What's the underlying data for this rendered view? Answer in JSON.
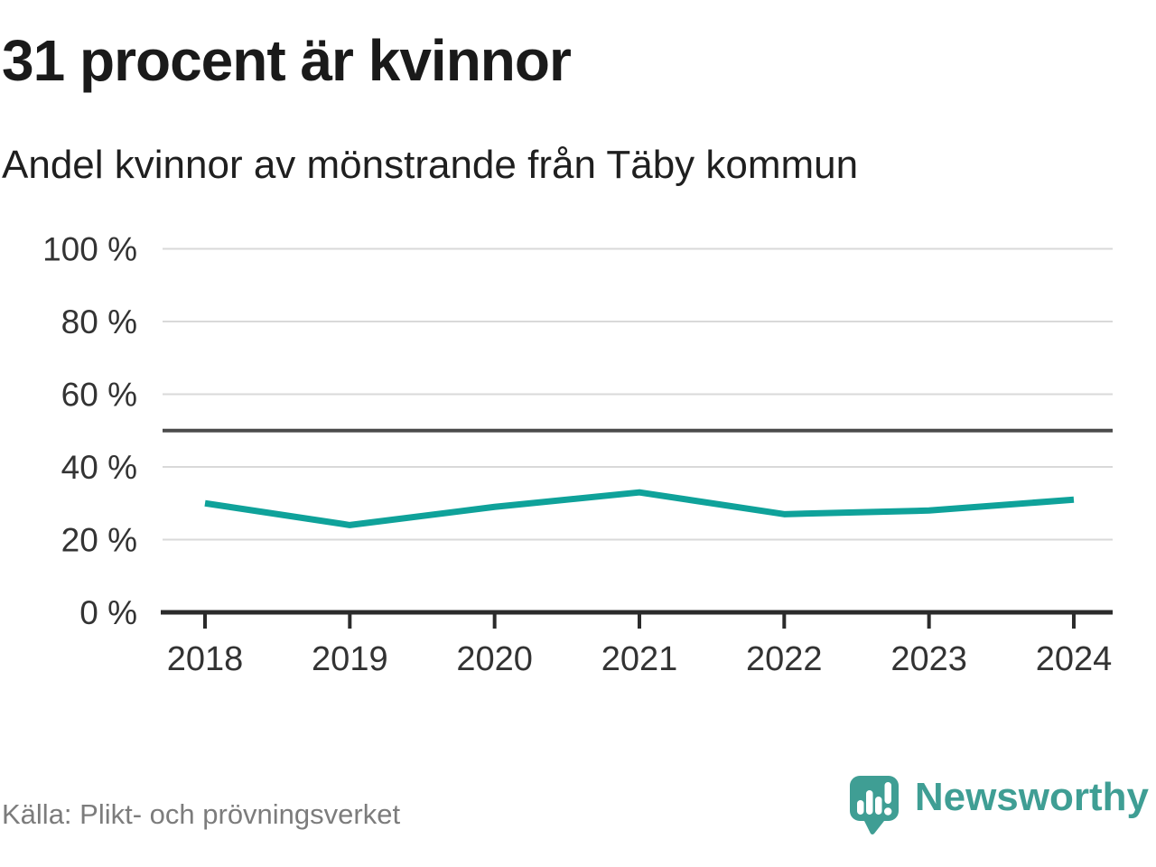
{
  "header": {
    "title": "31 procent är kvinnor",
    "subtitle": "Andel kvinnor av mönstrande från Täby kommun"
  },
  "chart_data": {
    "type": "line",
    "title": "31 procent är kvinnor",
    "subtitle": "Andel kvinnor av mönstrande från Täby kommun",
    "categories": [
      "2018",
      "2019",
      "2020",
      "2021",
      "2022",
      "2023",
      "2024"
    ],
    "series": [
      {
        "name": "Andel kvinnor av mönstrande",
        "values": [
          30,
          24,
          29,
          33,
          27,
          28,
          31
        ]
      }
    ],
    "unit": "%",
    "ylim": [
      0,
      100
    ],
    "yticks": [
      0,
      20,
      40,
      60,
      80,
      100
    ],
    "ytick_labels": [
      "0 %",
      "20 %",
      "40 %",
      "60 %",
      "80 %",
      "100 %"
    ],
    "reference_line": {
      "value": 50
    },
    "grid": true,
    "legend": false
  },
  "colors": {
    "line": "#0fa29a",
    "grid": "#d9d9d9",
    "reference_line": "#4c4c4c",
    "axis": "#2b2b2b",
    "tick_text": "#333333",
    "title_text": "#1a1a1a",
    "muted_text": "#7c7c7c",
    "brand": "#3f9e94"
  },
  "footer": {
    "source": "Källa: Plikt- och prövningsverket",
    "brand": "Newsworthy"
  },
  "icons": {
    "logo": "newsworthy-pin-icon"
  }
}
